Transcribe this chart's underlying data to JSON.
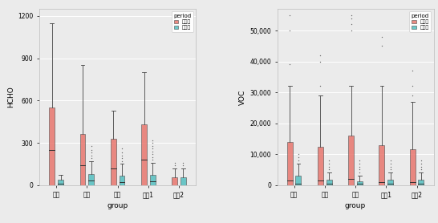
{
  "groups": [
    "실내",
    "우측",
    "하측",
    "필터1",
    "필터2"
  ],
  "xlabel": "group",
  "ylabel_left": "HCHO",
  "ylabel_right": "VOC",
  "legend_title": "period",
  "legend_labels": [
    "설치전",
    "설치후"
  ],
  "legend_colors": [
    "#E8766D",
    "#53BFC0"
  ],
  "background_color": "#EBEBEB",
  "grid_color": "#FFFFFF",
  "hcho_data": {
    "설치전": {
      "실내": [
        0,
        0,
        0,
        0,
        0,
        0,
        0,
        0,
        0,
        0,
        0,
        0,
        0,
        1,
        2,
        3,
        2,
        1,
        0,
        0,
        150,
        180,
        200,
        220,
        250,
        270,
        300,
        320,
        350,
        380,
        400,
        420,
        440,
        460,
        500,
        520,
        550,
        580,
        620,
        660,
        700,
        740,
        800,
        850,
        900,
        950,
        1000,
        1060,
        1150
      ],
      "우측": [
        0,
        0,
        0,
        0,
        0,
        0,
        0,
        0,
        0,
        0,
        0,
        1,
        2,
        3,
        2,
        1,
        0,
        0,
        0,
        0,
        60,
        70,
        80,
        90,
        100,
        110,
        120,
        130,
        140,
        150,
        160,
        170,
        180,
        190,
        200,
        220,
        240,
        260,
        280,
        300,
        320,
        340,
        360,
        380,
        400,
        420,
        440,
        470,
        500,
        530,
        560,
        600,
        650,
        700,
        750,
        800,
        850
      ],
      "하측": [
        0,
        0,
        0,
        0,
        0,
        0,
        0,
        0,
        0,
        0,
        1,
        2,
        3,
        2,
        1,
        0,
        0,
        0,
        0,
        0,
        100,
        120,
        140,
        160,
        180,
        200,
        220,
        240,
        260,
        280,
        300,
        320,
        340,
        360,
        380,
        400,
        420,
        440,
        460,
        480,
        500,
        520,
        525
      ],
      "필터1": [
        0,
        0,
        0,
        0,
        0,
        0,
        0,
        0,
        0,
        0,
        1,
        2,
        3,
        2,
        1,
        0,
        0,
        0,
        0,
        0,
        150,
        180,
        200,
        220,
        250,
        270,
        300,
        320,
        350,
        380,
        400,
        420,
        440,
        460,
        500,
        520,
        550,
        580,
        620,
        660,
        700,
        740,
        800
      ],
      "필터2": [
        0,
        0,
        0,
        0,
        0,
        0,
        0,
        0,
        0,
        0,
        1,
        2,
        3,
        2,
        1,
        0,
        0,
        0,
        0,
        0,
        30,
        40,
        50,
        60,
        70,
        80,
        90,
        100,
        120,
        140,
        160
      ]
    },
    "설치후": {
      "실내": [
        0,
        0,
        0,
        0,
        0,
        0,
        0,
        0,
        0,
        0,
        0,
        0,
        0,
        1,
        2,
        3,
        2,
        1,
        0,
        0,
        5,
        8,
        10,
        12,
        15,
        18,
        20,
        22,
        25,
        28,
        30,
        32,
        35,
        38,
        40,
        42,
        45,
        48,
        50,
        52,
        55,
        58,
        60,
        62,
        65,
        68,
        70
      ],
      "우측": [
        0,
        0,
        0,
        0,
        0,
        0,
        0,
        0,
        0,
        0,
        0,
        1,
        2,
        3,
        2,
        1,
        0,
        0,
        0,
        0,
        5,
        8,
        10,
        12,
        15,
        18,
        20,
        22,
        25,
        28,
        30,
        32,
        35,
        38,
        40,
        42,
        45,
        48,
        50,
        52,
        55,
        58,
        60,
        62,
        65,
        68,
        70,
        75,
        80,
        85,
        90,
        95,
        100,
        110,
        120,
        130,
        140,
        155,
        170,
        190,
        210,
        230,
        250,
        280
      ],
      "하측": [
        0,
        0,
        0,
        0,
        0,
        0,
        0,
        0,
        0,
        0,
        1,
        2,
        3,
        2,
        1,
        0,
        0,
        0,
        0,
        0,
        5,
        8,
        10,
        12,
        15,
        18,
        20,
        22,
        25,
        28,
        30,
        32,
        35,
        38,
        40,
        42,
        45,
        48,
        50,
        55,
        60,
        65,
        70,
        80,
        90,
        100,
        110,
        120,
        130,
        140,
        155,
        170,
        190,
        210,
        230,
        260
      ],
      "필터1": [
        0,
        0,
        0,
        0,
        0,
        0,
        0,
        0,
        0,
        0,
        1,
        2,
        3,
        2,
        1,
        0,
        0,
        0,
        0,
        0,
        5,
        8,
        10,
        12,
        15,
        18,
        20,
        22,
        25,
        28,
        30,
        32,
        35,
        38,
        40,
        42,
        45,
        48,
        50,
        55,
        60,
        65,
        70,
        80,
        90,
        100,
        120,
        140,
        160,
        180,
        200,
        220,
        240,
        260,
        280,
        300,
        320
      ],
      "필터2": [
        0,
        0,
        0,
        0,
        0,
        0,
        0,
        0,
        0,
        0,
        1,
        2,
        3,
        2,
        1,
        0,
        0,
        0,
        0,
        0,
        30,
        40,
        50,
        60,
        70,
        80,
        90,
        100,
        120,
        140,
        160
      ]
    }
  },
  "voc_data": {
    "설치전": {
      "실내": [
        0,
        0,
        0,
        0,
        0,
        0,
        0,
        0,
        0,
        0,
        0,
        0,
        100,
        200,
        300,
        400,
        500,
        600,
        700,
        800,
        900,
        1000,
        1500,
        2000,
        2500,
        3000,
        4000,
        5000,
        6000,
        8000,
        9000,
        10000,
        12000,
        14000,
        16000,
        18000,
        20000,
        22000,
        25000,
        27000,
        29000,
        32000,
        39000,
        50000,
        55000
      ],
      "우측": [
        0,
        0,
        0,
        0,
        0,
        0,
        0,
        0,
        0,
        0,
        0,
        0,
        100,
        200,
        300,
        400,
        500,
        600,
        700,
        800,
        900,
        1000,
        2000,
        3000,
        4000,
        5000,
        6000,
        7000,
        8000,
        9000,
        9500,
        10000,
        12000,
        14000,
        16000,
        18000,
        20000,
        22000,
        25000,
        27000,
        29000,
        32000,
        40000,
        42000
      ],
      "하측": [
        0,
        0,
        0,
        0,
        0,
        0,
        0,
        0,
        0,
        0,
        0,
        0,
        100,
        200,
        300,
        400,
        500,
        600,
        700,
        800,
        900,
        1000,
        2000,
        3000,
        4000,
        5000,
        6000,
        7000,
        8000,
        9000,
        10000,
        12000,
        14000,
        16000,
        18000,
        20000,
        22000,
        25000,
        27000,
        29000,
        32000,
        50000,
        55000,
        54000,
        52000
      ],
      "필터1": [
        0,
        0,
        0,
        0,
        0,
        0,
        0,
        0,
        0,
        0,
        0,
        0,
        100,
        200,
        300,
        400,
        500,
        600,
        700,
        800,
        900,
        1000,
        2000,
        3000,
        4000,
        5000,
        6000,
        7000,
        8000,
        9000,
        10000,
        12000,
        14000,
        16000,
        18000,
        20000,
        22000,
        25000,
        27000,
        29000,
        32000,
        45000,
        48000
      ],
      "필터2": [
        0,
        0,
        0,
        0,
        0,
        0,
        0,
        0,
        0,
        0,
        0,
        0,
        100,
        200,
        300,
        400,
        500,
        600,
        700,
        800,
        900,
        1000,
        2000,
        3000,
        4000,
        5000,
        6000,
        7000,
        8000,
        9000,
        10000,
        12000,
        14000,
        16000,
        18000,
        20000,
        22000,
        25000,
        27000,
        29000,
        32000,
        37000
      ]
    },
    "설치후": {
      "실내": [
        0,
        0,
        0,
        0,
        0,
        0,
        0,
        0,
        0,
        0,
        0,
        200,
        300,
        400,
        500,
        600,
        700,
        800,
        900,
        1000,
        2000,
        3000,
        4000,
        5000,
        6000,
        7000,
        8000,
        9000,
        10000
      ],
      "우측": [
        0,
        0,
        0,
        0,
        0,
        0,
        0,
        0,
        0,
        0,
        200,
        300,
        400,
        500,
        600,
        700,
        800,
        900,
        1000,
        2000,
        3000,
        4000,
        5000,
        6000,
        7000,
        8000
      ],
      "하측": [
        0,
        0,
        0,
        0,
        0,
        0,
        0,
        0,
        0,
        0,
        0,
        0,
        200,
        300,
        400,
        500,
        600,
        700,
        800,
        900,
        1000,
        2000,
        3000,
        4000,
        5000,
        6000,
        7000,
        8000
      ],
      "필터1": [
        0,
        0,
        0,
        0,
        0,
        0,
        0,
        0,
        0,
        0,
        200,
        300,
        400,
        500,
        600,
        700,
        800,
        900,
        1000,
        2000,
        3000,
        4000,
        5000,
        6000,
        7000,
        8000
      ],
      "필터2": [
        0,
        0,
        0,
        0,
        0,
        0,
        0,
        0,
        0,
        0,
        200,
        300,
        400,
        500,
        600,
        700,
        800,
        900,
        1000,
        2000,
        3000,
        4000,
        5000,
        6000,
        7000,
        8000
      ]
    }
  },
  "hcho_ylim": [
    0,
    1250
  ],
  "hcho_yticks": [
    0,
    300,
    600,
    900,
    1200
  ],
  "voc_ylim": [
    0,
    57000
  ],
  "voc_yticks": [
    0,
    10000,
    20000,
    30000,
    40000,
    50000
  ],
  "figsize": [
    5.46,
    2.78
  ],
  "dpi": 100
}
